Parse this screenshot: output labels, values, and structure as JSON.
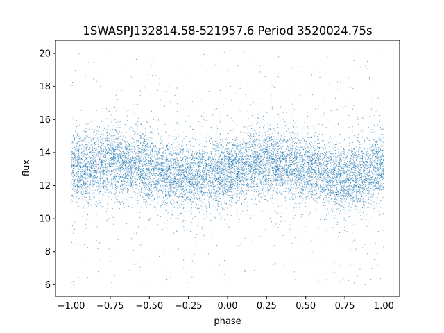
{
  "chart_data": {
    "type": "scatter",
    "title": "1SWASPJ132814.58-521957.6 Period 3520024.75s",
    "xlabel": "phase",
    "ylabel": "flux",
    "xlim": [
      -1.1,
      1.1
    ],
    "ylim": [
      5.3,
      20.8
    ],
    "x_ticks": [
      -1.0,
      -0.75,
      -0.5,
      -0.25,
      0.0,
      0.25,
      0.5,
      0.75,
      1.0
    ],
    "x_tick_labels": [
      "−1.00",
      "−0.75",
      "−0.50",
      "−0.25",
      "0.00",
      "0.25",
      "0.50",
      "0.75",
      "1.00"
    ],
    "y_ticks": [
      6,
      8,
      10,
      12,
      14,
      16,
      18,
      20
    ],
    "y_tick_labels": [
      "6",
      "8",
      "10",
      "12",
      "14",
      "16",
      "18",
      "20"
    ],
    "grid": false,
    "legend": "none",
    "marker_color": "#1f77b4",
    "series": [
      {
        "x_range": [
          -1.0,
          1.0
        ],
        "approx_points": 12000,
        "profile": [
          {
            "x": -1.0,
            "y": 13.2
          },
          {
            "x": -0.9,
            "y": 13.0
          },
          {
            "x": -0.75,
            "y": 13.6
          },
          {
            "x": -0.6,
            "y": 13.3
          },
          {
            "x": -0.5,
            "y": 13.0
          },
          {
            "x": -0.35,
            "y": 12.7
          },
          {
            "x": -0.25,
            "y": 12.5
          },
          {
            "x": -0.1,
            "y": 12.8
          },
          {
            "x": 0.0,
            "y": 13.0
          },
          {
            "x": 0.1,
            "y": 13.2
          },
          {
            "x": 0.25,
            "y": 13.5
          },
          {
            "x": 0.4,
            "y": 13.2
          },
          {
            "x": 0.5,
            "y": 13.0
          },
          {
            "x": 0.65,
            "y": 12.6
          },
          {
            "x": 0.75,
            "y": 12.5
          },
          {
            "x": 0.9,
            "y": 12.8
          },
          {
            "x": 1.0,
            "y": 13.2
          }
        ],
        "core_spread": 1.2,
        "y_min": 6.0,
        "y_max": 20.1
      }
    ]
  }
}
